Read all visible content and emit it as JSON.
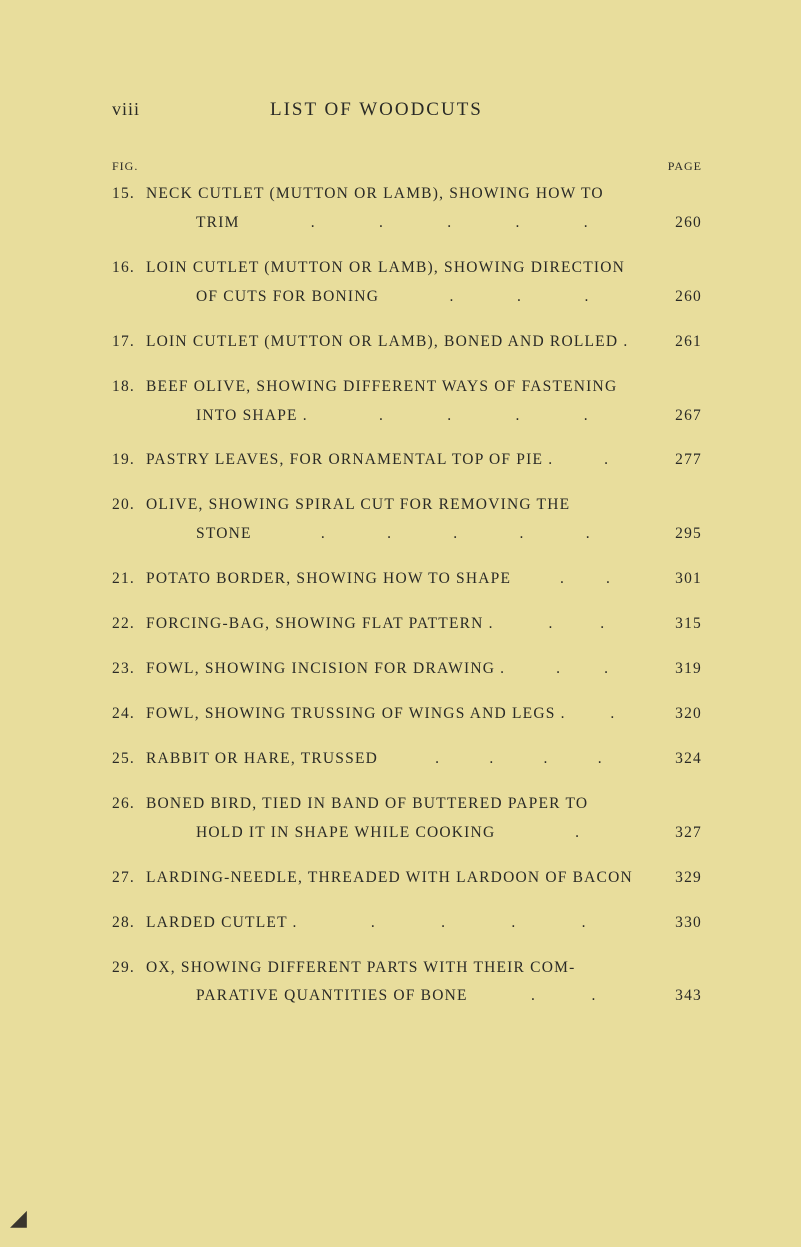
{
  "header": {
    "roman": "viii",
    "title": "LIST OF WOODCUTS"
  },
  "labels": {
    "fig": "FIG.",
    "page": "PAGE"
  },
  "entries": [
    {
      "n": "15.",
      "l1": "NECK CUTLET (MUTTON OR LAMB), SHOWING HOW TO",
      "l2": "TRIM",
      "pg": "260",
      "dots": 5
    },
    {
      "n": "16.",
      "l1": "LOIN CUTLET (MUTTON OR LAMB), SHOWING DIRECTION",
      "l2": "OF CUTS FOR BONING",
      "pg": "260",
      "dots": 3
    },
    {
      "n": "17.",
      "l1": "LOIN CUTLET (MUTTON OR LAMB), BONED AND ROLLED .",
      "pg": "261",
      "dots": 0,
      "single": true
    },
    {
      "n": "18.",
      "l1": "BEEF OLIVE, SHOWING DIFFERENT WAYS OF FASTENING",
      "l2": "INTO SHAPE .",
      "pg": "267",
      "dots": 4
    },
    {
      "n": "19.",
      "l1": "PASTRY LEAVES, FOR ORNAMENTAL TOP OF PIE .",
      "pg": "277",
      "dots": 1,
      "single": true
    },
    {
      "n": "20.",
      "l1": "OLIVE, SHOWING SPIRAL CUT FOR REMOVING THE",
      "l2": "STONE",
      "pg": "295",
      "dots": 5
    },
    {
      "n": "21.",
      "l1": "POTATO BORDER, SHOWING HOW TO SHAPE",
      "pg": "301",
      "dots": 2,
      "single": true
    },
    {
      "n": "22.",
      "l1": "FORCING-BAG, SHOWING FLAT PATTERN .",
      "pg": "315",
      "dots": 2,
      "single": true
    },
    {
      "n": "23.",
      "l1": "FOWL, SHOWING INCISION FOR DRAWING .",
      "pg": "319",
      "dots": 2,
      "single": true
    },
    {
      "n": "24.",
      "l1": "FOWL, SHOWING TRUSSING OF WINGS AND LEGS .",
      "pg": "320",
      "dots": 1,
      "single": true
    },
    {
      "n": "25.",
      "l1": "RABBIT OR HARE, TRUSSED",
      "pg": "324",
      "dots": 4,
      "single": true
    },
    {
      "n": "26.",
      "l1": "BONED BIRD, TIED IN BAND OF BUTTERED PAPER TO",
      "l2": "HOLD IT IN SHAPE WHILE COOKING",
      "pg": "327",
      "dots": 1
    },
    {
      "n": "27.",
      "l1": "LARDING-NEEDLE, THREADED WITH LARDOON OF BACON",
      "pg": "329",
      "dots": 0,
      "single": true
    },
    {
      "n": "28.",
      "l1": "LARDED CUTLET .",
      "pg": "330",
      "dots": 4,
      "single": true
    },
    {
      "n": "29.",
      "l1": "OX, SHOWING DIFFERENT PARTS WITH THEIR COM-",
      "l2": "PARATIVE QUANTITIES OF BONE",
      "pg": "343",
      "dots": 2
    }
  ],
  "colors": {
    "background": "#e8dd9c",
    "text": "#2a2a26"
  }
}
